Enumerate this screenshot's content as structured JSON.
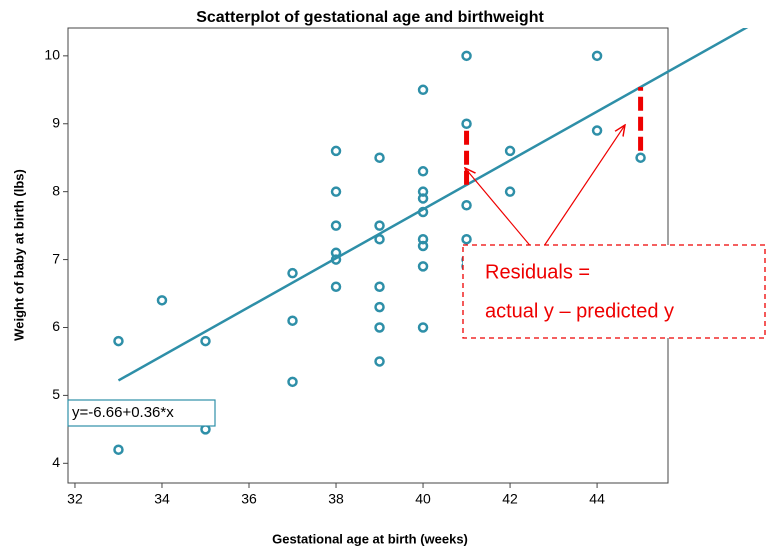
{
  "chart_data": {
    "type": "scatter",
    "title": "Scatterplot of gestational age and birthweight",
    "x_label": "Gestational age at birth (weeks)",
    "y_label": "Weight of baby at birth (lbs)",
    "color": "#2e8fa8",
    "series": [
      {
        "x": [
          33,
          33,
          34,
          35,
          35,
          37,
          37,
          37,
          38,
          38,
          38,
          38,
          38,
          38,
          39,
          39,
          39,
          39,
          39,
          39,
          39,
          40,
          40,
          40,
          40,
          40,
          40,
          40,
          40,
          40,
          41,
          41,
          41,
          41,
          41,
          41,
          42,
          42,
          44,
          44,
          45
        ],
        "values": [
          5.8,
          4.2,
          6.4,
          5.8,
          4.5,
          6.8,
          6.1,
          5.2,
          8.6,
          8.0,
          7.5,
          7.1,
          7.0,
          6.6,
          8.5,
          7.5,
          7.3,
          6.6,
          6.3,
          6.0,
          5.5,
          9.5,
          8.3,
          8.0,
          7.9,
          7.7,
          7.3,
          7.2,
          6.9,
          6.0,
          10.0,
          9.0,
          7.8,
          7.3,
          7.0,
          6.9,
          8.6,
          8.0,
          10.0,
          8.9,
          8.5
        ]
      }
    ],
    "fit": {
      "intercept": -6.66,
      "slope": 0.36,
      "label": "y=-6.66+0.36*x"
    },
    "residual_indices": [
      31,
      40
    ],
    "annotation": [
      "Residuals =",
      "actual y – predicted y"
    ],
    "xlim": [
      31.84,
      45.63
    ],
    "ylim": [
      3.71,
      10.41
    ],
    "xticks": [
      32,
      34,
      36,
      38,
      40,
      42,
      44
    ],
    "yticks": [
      4,
      5,
      6,
      7,
      8,
      9,
      10
    ]
  }
}
